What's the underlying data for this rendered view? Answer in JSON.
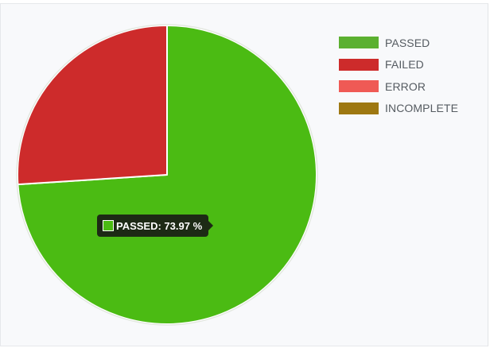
{
  "chart_data": {
    "type": "pie",
    "categories": [
      "PASSED",
      "FAILED",
      "ERROR",
      "INCOMPLETE"
    ],
    "values": [
      73.97,
      26.03,
      0,
      0
    ],
    "unit": "%",
    "colors": [
      "#4bbb13",
      "#cd2b2b",
      "#ef5a55",
      "#9e7811"
    ],
    "legend_colors": [
      "#5bb030",
      "#cd2b2b",
      "#ef5a55",
      "#9e7811"
    ],
    "legend_position": "top-right"
  },
  "tooltip": {
    "text": "PASSED: 73.97 %",
    "color": "#4bbb13"
  }
}
